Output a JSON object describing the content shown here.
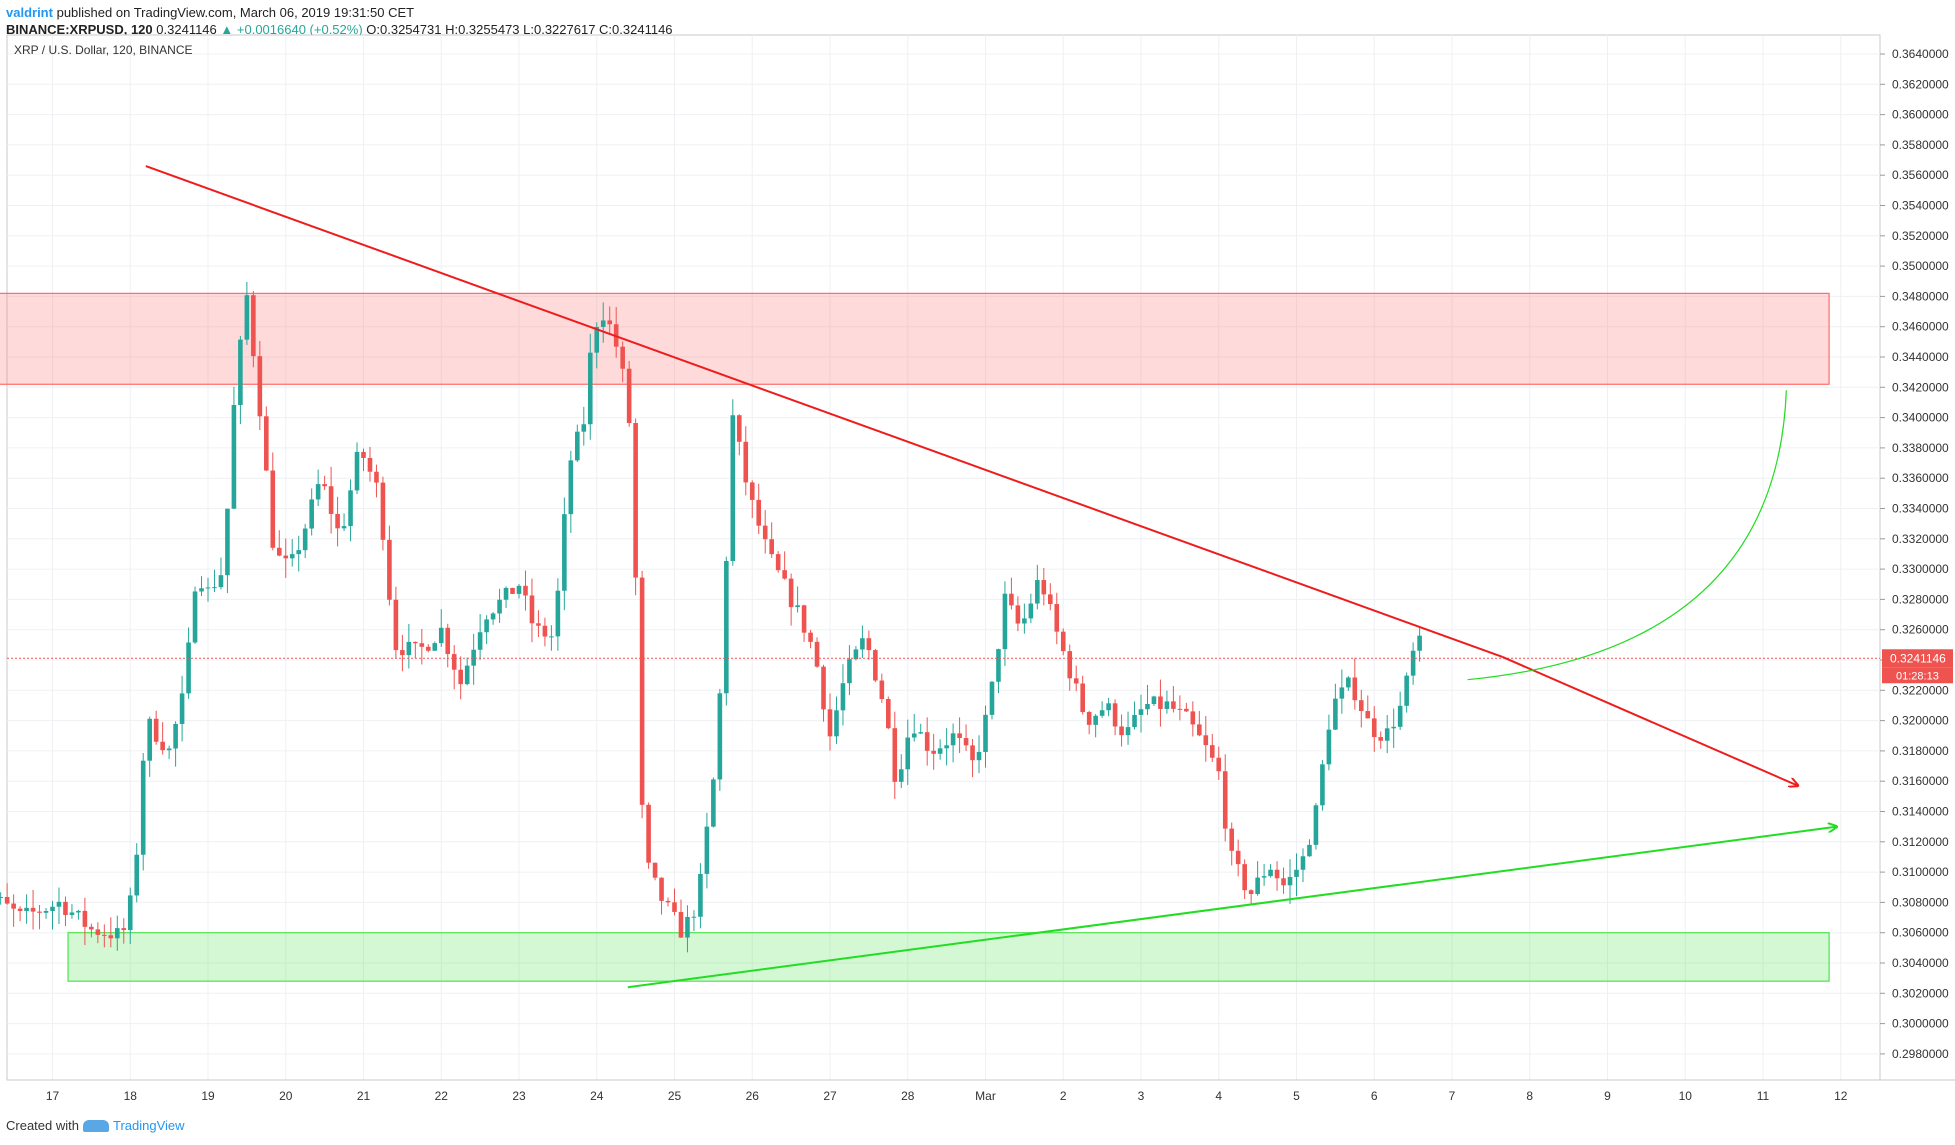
{
  "header": {
    "user": "valdrint",
    "published_text": "published on TradingView.com, March 06, 2019 19:31:50 CET",
    "symbol": "BINANCE:XRPUSD, 120",
    "last": "0.3241146",
    "change": "▲ +0.0016640 (+0.52%)",
    "ohlc": "O:0.3254731 H:0.3255473 L:0.3227617 C:0.3241146"
  },
  "footer": {
    "created_with": "Created with",
    "brand": "TradingView"
  },
  "chart_data": {
    "type": "candlestick",
    "title": "XRP / U.S. Dollar, 120, BINANCE",
    "ylim": [
      0.2966,
      0.3644
    ],
    "y_ticks": [
      "0.3640000",
      "0.3620000",
      "0.3600000",
      "0.3580000",
      "0.3560000",
      "0.3540000",
      "0.3520000",
      "0.3500000",
      "0.3480000",
      "0.3460000",
      "0.3440000",
      "0.3420000",
      "0.3400000",
      "0.3380000",
      "0.3360000",
      "0.3340000",
      "0.3320000",
      "0.3300000",
      "0.3280000",
      "0.3260000",
      "0.3240000",
      "0.3220000",
      "0.3200000",
      "0.3180000",
      "0.3160000",
      "0.3140000",
      "0.3120000",
      "0.3100000",
      "0.3080000",
      "0.3060000",
      "0.3040000",
      "0.3020000",
      "0.3000000",
      "0.2980000"
    ],
    "x_ticks": [
      {
        "label": "17",
        "day": 17
      },
      {
        "label": "18",
        "day": 18
      },
      {
        "label": "19",
        "day": 19
      },
      {
        "label": "20",
        "day": 20
      },
      {
        "label": "21",
        "day": 21
      },
      {
        "label": "22",
        "day": 22
      },
      {
        "label": "23",
        "day": 23
      },
      {
        "label": "24",
        "day": 24
      },
      {
        "label": "25",
        "day": 25
      },
      {
        "label": "26",
        "day": 26
      },
      {
        "label": "27",
        "day": 27
      },
      {
        "label": "28",
        "day": 28
      },
      {
        "label": "Mar",
        "day": 29
      },
      {
        "label": "2",
        "day": 30
      },
      {
        "label": "3",
        "day": 31
      },
      {
        "label": "4",
        "day": 32
      },
      {
        "label": "5",
        "day": 33
      },
      {
        "label": "6",
        "day": 34
      },
      {
        "label": "7",
        "day": 35
      },
      {
        "label": "8",
        "day": 36
      },
      {
        "label": "9",
        "day": 37
      },
      {
        "label": "10",
        "day": 38
      },
      {
        "label": "11",
        "day": 39
      },
      {
        "label": "12",
        "day": 40
      }
    ],
    "price_line": {
      "value": 0.3241146,
      "label": "0.3241146",
      "countdown": "01:28:13"
    },
    "anchors": [
      [
        16.0,
        0.3092
      ],
      [
        16.6,
        0.307
      ],
      [
        17.1,
        0.308
      ],
      [
        17.5,
        0.3062
      ],
      [
        17.9,
        0.3058
      ],
      [
        18.05,
        0.309
      ],
      [
        18.2,
        0.32
      ],
      [
        18.5,
        0.318
      ],
      [
        18.7,
        0.322
      ],
      [
        18.85,
        0.33
      ],
      [
        19.0,
        0.3285
      ],
      [
        19.2,
        0.33
      ],
      [
        19.35,
        0.342
      ],
      [
        19.5,
        0.348
      ],
      [
        19.65,
        0.3415
      ],
      [
        19.85,
        0.331
      ],
      [
        20.05,
        0.33
      ],
      [
        20.2,
        0.332
      ],
      [
        20.45,
        0.336
      ],
      [
        20.7,
        0.332
      ],
      [
        20.95,
        0.338
      ],
      [
        21.2,
        0.335
      ],
      [
        21.4,
        0.325
      ],
      [
        21.7,
        0.3245
      ],
      [
        22.0,
        0.326
      ],
      [
        22.25,
        0.3225
      ],
      [
        22.55,
        0.327
      ],
      [
        22.8,
        0.328
      ],
      [
        23.0,
        0.329
      ],
      [
        23.2,
        0.326
      ],
      [
        23.45,
        0.3255
      ],
      [
        23.65,
        0.337
      ],
      [
        23.85,
        0.34
      ],
      [
        23.95,
        0.346
      ],
      [
        24.1,
        0.347
      ],
      [
        24.3,
        0.344
      ],
      [
        24.45,
        0.3385
      ],
      [
        24.6,
        0.311
      ],
      [
        24.8,
        0.3085
      ],
      [
        25.1,
        0.306
      ],
      [
        25.3,
        0.308
      ],
      [
        25.55,
        0.318
      ],
      [
        25.75,
        0.34
      ],
      [
        25.95,
        0.335
      ],
      [
        26.2,
        0.331
      ],
      [
        26.4,
        0.329
      ],
      [
        26.6,
        0.327
      ],
      [
        26.8,
        0.3245
      ],
      [
        27.0,
        0.319
      ],
      [
        27.2,
        0.323
      ],
      [
        27.45,
        0.3255
      ],
      [
        27.7,
        0.321
      ],
      [
        27.85,
        0.316
      ],
      [
        28.05,
        0.32
      ],
      [
        28.3,
        0.318
      ],
      [
        28.6,
        0.319
      ],
      [
        28.85,
        0.317
      ],
      [
        29.05,
        0.321
      ],
      [
        29.25,
        0.328
      ],
      [
        29.45,
        0.326
      ],
      [
        29.7,
        0.3295
      ],
      [
        29.9,
        0.326
      ],
      [
        30.1,
        0.323
      ],
      [
        30.3,
        0.32
      ],
      [
        30.55,
        0.321
      ],
      [
        30.8,
        0.319
      ],
      [
        31.05,
        0.321
      ],
      [
        31.35,
        0.321
      ],
      [
        31.6,
        0.32
      ],
      [
        31.85,
        0.318
      ],
      [
        32.0,
        0.3165
      ],
      [
        32.15,
        0.311
      ],
      [
        32.4,
        0.3085
      ],
      [
        32.65,
        0.3105
      ],
      [
        32.85,
        0.309
      ],
      [
        33.1,
        0.311
      ],
      [
        33.25,
        0.314
      ],
      [
        33.45,
        0.321
      ],
      [
        33.7,
        0.3225
      ],
      [
        33.95,
        0.3195
      ],
      [
        34.15,
        0.319
      ],
      [
        34.35,
        0.321
      ],
      [
        34.55,
        0.3255
      ],
      [
        34.62,
        0.3245
      ]
    ],
    "zones": [
      {
        "from_day": 15.95,
        "to_day": 39.85,
        "low": 0.3422,
        "high": 0.3482,
        "color": "#ff6b6b"
      },
      {
        "from_day": 17.2,
        "to_day": 39.85,
        "low": 0.3028,
        "high": 0.306,
        "color": "#4ee44e"
      }
    ],
    "trendlines": [
      {
        "from": [
          18.2,
          0.3566
        ],
        "to": [
          35.65,
          0.3242
        ],
        "color": "#ee1c1c",
        "arrow": false
      },
      {
        "from": [
          35.65,
          0.3242
        ],
        "to": [
          39.45,
          0.3157
        ],
        "color": "#ee1c1c",
        "arrow": true
      },
      {
        "from": [
          24.4,
          0.3024
        ],
        "to": [
          39.95,
          0.313
        ],
        "color": "#22dd22",
        "arrow": true
      }
    ],
    "curve": {
      "from": [
        35.2,
        0.3227
      ],
      "to": [
        39.3,
        0.3418
      ],
      "color": "#22dd22"
    }
  }
}
